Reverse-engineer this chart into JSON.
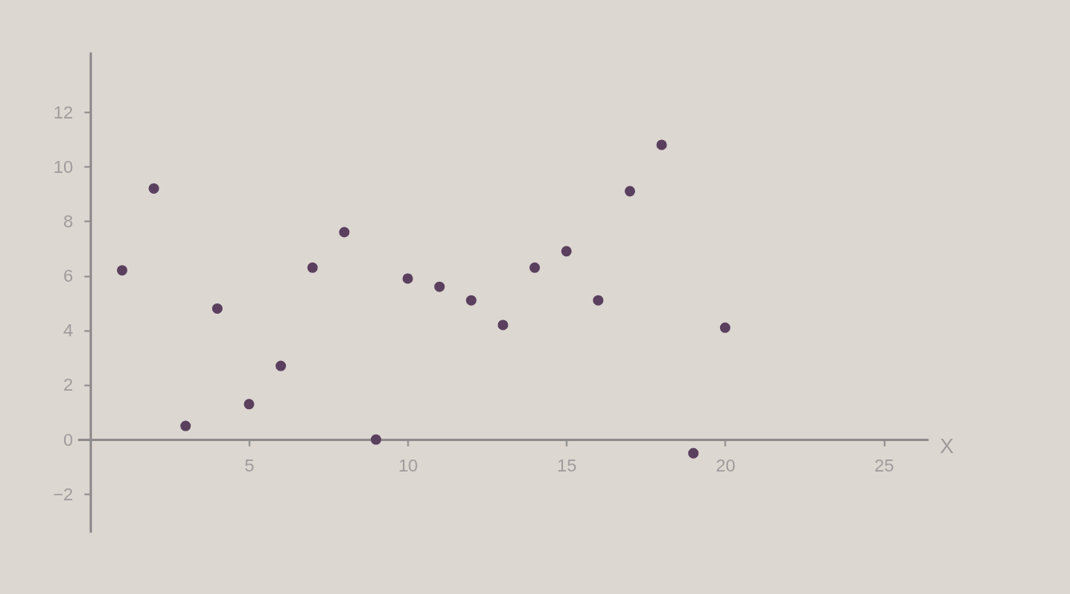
{
  "chart_data": {
    "type": "scatter",
    "xlabel": "X",
    "x": [
      1,
      2,
      3,
      4,
      5,
      6,
      7,
      8,
      9,
      10,
      11,
      12,
      13,
      14,
      15,
      16,
      17,
      18,
      19,
      20
    ],
    "series": [
      {
        "color": "#5b3f5e",
        "values": [
          6.2,
          9.2,
          0.5,
          4.8,
          1.3,
          2.7,
          6.3,
          7.6,
          0,
          5.9,
          5.6,
          5.1,
          4.2,
          6.3,
          6.9,
          5.1,
          9.1,
          10.8,
          -0.5,
          4.1
        ]
      }
    ],
    "xlim": [
      -0.4,
      26.4
    ],
    "ylim": [
      -3.4,
      14.2
    ],
    "xticks": [
      5,
      10,
      15,
      20,
      25
    ],
    "yticks": [
      -2,
      0,
      2,
      4,
      6,
      8,
      10,
      12
    ],
    "marker": "circle",
    "grid": false,
    "legend": false
  }
}
